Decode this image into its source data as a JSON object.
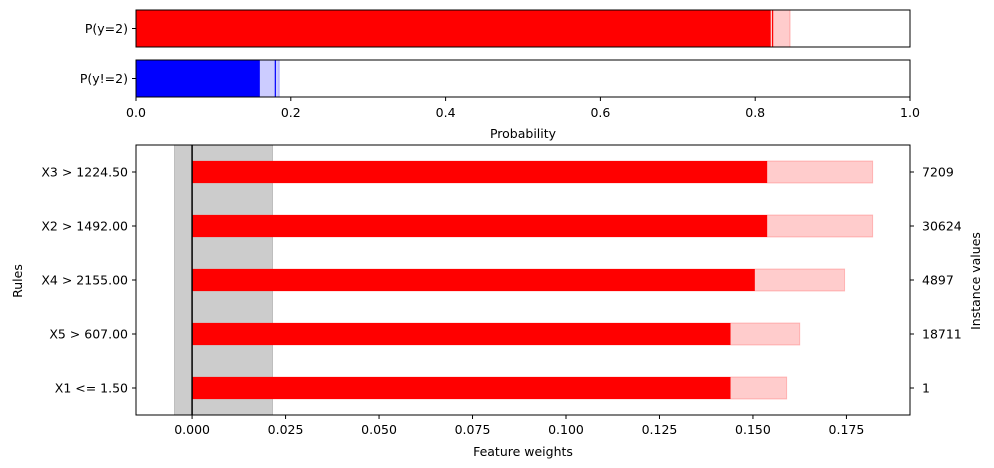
{
  "chart_data": [
    {
      "type": "bar",
      "orientation": "horizontal",
      "categories": [
        "P(y=2)",
        "P(y!=2)"
      ],
      "series": [
        {
          "values": [
            0.82,
            0.16
          ],
          "colors": [
            "#ff0000",
            "#0000ff"
          ]
        },
        {
          "values": [
            0.845,
            0.185
          ],
          "colors": [
            "#ff0000",
            "#0000ff"
          ]
        }
      ],
      "point_estimate": [
        0.8225,
        0.18
      ],
      "xlabel": "Probability",
      "xlim": [
        0.0,
        1.0
      ],
      "xticks": [
        "0.0",
        "0.2",
        "0.4",
        "0.6",
        "0.8",
        "1.0"
      ],
      "xtick_values": [
        0.0,
        0.2,
        0.4,
        0.6,
        0.8,
        1.0
      ]
    },
    {
      "type": "bar",
      "orientation": "horizontal",
      "categories": [
        "X3 > 1224.50",
        "X2 > 1492.00",
        "X4 > 2155.00",
        "X5 > 607.00",
        "X1 <= 1.50"
      ],
      "series": [
        {
          "values": [
            0.1538,
            0.1538,
            0.1505,
            0.144,
            0.144
          ],
          "color": "#ff0000"
        },
        {
          "values": [
            0.182,
            0.182,
            0.1745,
            0.1625,
            0.159
          ],
          "color": "#ff0000"
        }
      ],
      "instance_values": [
        "7209",
        "30624",
        "4897",
        "18711",
        "1"
      ],
      "xlabel": "Feature weights",
      "ylabel": "Rules",
      "ylabel_right": "Instance values",
      "xlim": [
        -0.015,
        0.192
      ],
      "xticks": [
        "0.000",
        "0.025",
        "0.050",
        "0.075",
        "0.100",
        "0.125",
        "0.150",
        "0.175"
      ],
      "xtick_values": [
        0.0,
        0.025,
        0.05,
        0.075,
        0.1,
        0.125,
        0.15,
        0.175
      ],
      "shaded_interval": [
        -0.0047,
        0.0215
      ]
    }
  ]
}
